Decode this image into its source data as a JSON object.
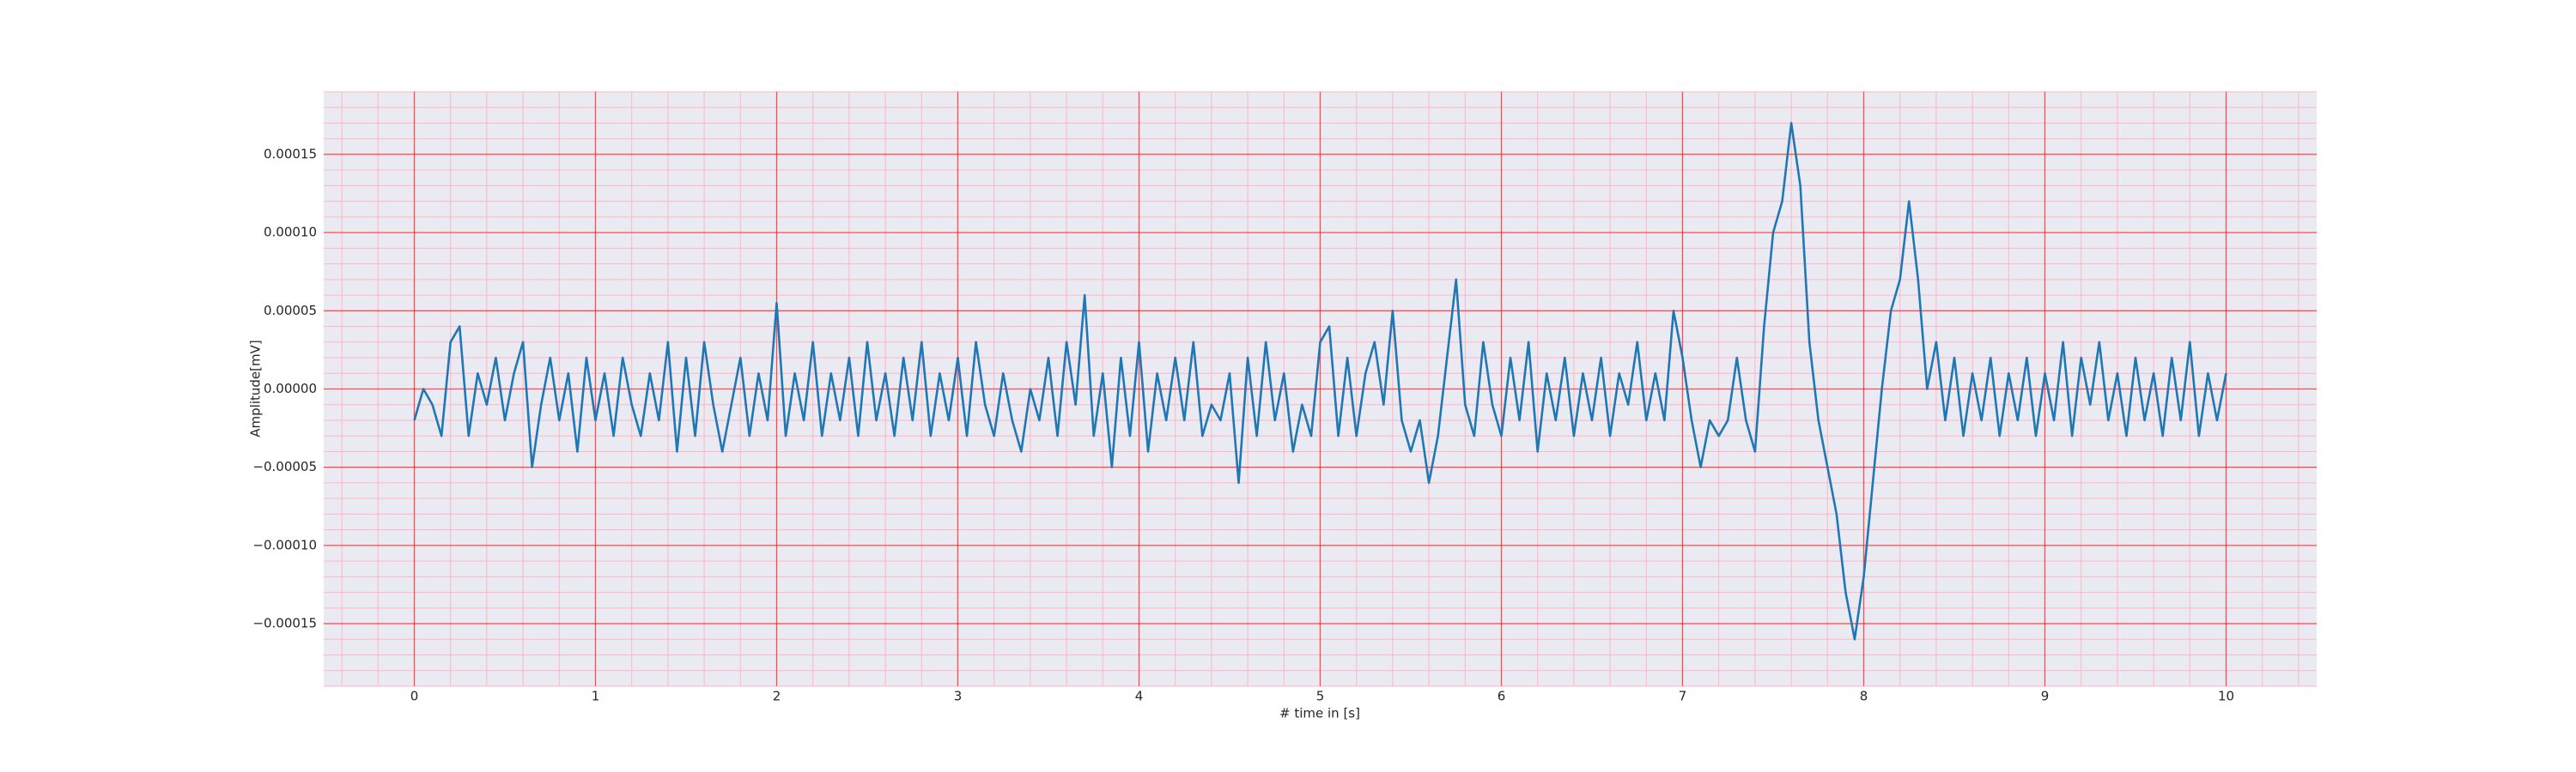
{
  "chart_data": {
    "type": "line",
    "xlabel": "# time in [s]",
    "ylabel": "Amplitude[mV]",
    "color": "#1f77b4",
    "grid": true,
    "minor_grid": true,
    "xlim": [
      -0.5,
      10.5
    ],
    "xticks": [
      0,
      1,
      2,
      3,
      4,
      5,
      6,
      7,
      8,
      9,
      10
    ],
    "ylim": [
      -0.00019,
      0.00019
    ],
    "yticks": [
      {
        "value": -0.00015,
        "label": "−0.00015"
      },
      {
        "value": -0.0001,
        "label": "−0.00010"
      },
      {
        "value": -5e-05,
        "label": "−0.00005"
      },
      {
        "value": 0,
        "label": "0.00000"
      },
      {
        "value": 5e-05,
        "label": "0.00005"
      },
      {
        "value": 0.0001,
        "label": "0.00010"
      },
      {
        "value": 0.00015,
        "label": "0.00015"
      }
    ],
    "x": [
      0,
      0.05,
      0.1,
      0.15,
      0.2,
      0.25,
      0.3,
      0.35,
      0.4,
      0.45,
      0.5,
      0.55,
      0.6,
      0.65,
      0.7,
      0.75,
      0.8,
      0.85,
      0.9,
      0.95,
      1,
      1.05,
      1.1,
      1.15,
      1.2,
      1.25,
      1.3,
      1.35,
      1.4,
      1.45,
      1.5,
      1.55,
      1.6,
      1.65,
      1.7,
      1.75,
      1.8,
      1.85,
      1.9,
      1.95,
      2,
      2.05,
      2.1,
      2.15,
      2.2,
      2.25,
      2.3,
      2.35,
      2.4,
      2.45,
      2.5,
      2.55,
      2.6,
      2.65,
      2.7,
      2.75,
      2.8,
      2.85,
      2.9,
      2.95,
      3,
      3.05,
      3.1,
      3.15,
      3.2,
      3.25,
      3.3,
      3.35,
      3.4,
      3.45,
      3.5,
      3.55,
      3.6,
      3.65,
      3.7,
      3.75,
      3.8,
      3.85,
      3.9,
      3.95,
      4,
      4.05,
      4.1,
      4.15,
      4.2,
      4.25,
      4.3,
      4.35,
      4.4,
      4.45,
      4.5,
      4.55,
      4.6,
      4.65,
      4.7,
      4.75,
      4.8,
      4.85,
      4.9,
      4.95,
      5,
      5.05,
      5.1,
      5.15,
      5.2,
      5.25,
      5.3,
      5.35,
      5.4,
      5.45,
      5.5,
      5.55,
      5.6,
      5.65,
      5.7,
      5.75,
      5.8,
      5.85,
      5.9,
      5.95,
      6,
      6.05,
      6.1,
      6.15,
      6.2,
      6.25,
      6.3,
      6.35,
      6.4,
      6.45,
      6.5,
      6.55,
      6.6,
      6.65,
      6.7,
      6.75,
      6.8,
      6.85,
      6.9,
      6.95,
      7,
      7.05,
      7.1,
      7.15,
      7.2,
      7.25,
      7.3,
      7.35,
      7.4,
      7.45,
      7.5,
      7.55,
      7.6,
      7.65,
      7.7,
      7.75,
      7.8,
      7.85,
      7.9,
      7.95,
      8,
      8.05,
      8.1,
      8.15,
      8.2,
      8.25,
      8.3,
      8.35,
      8.4,
      8.45,
      8.5,
      8.55,
      8.6,
      8.65,
      8.7,
      8.75,
      8.8,
      8.85,
      8.9,
      8.95,
      9,
      9.05,
      9.1,
      9.15,
      9.2,
      9.25,
      9.3,
      9.35,
      9.4,
      9.45,
      9.5,
      9.55,
      9.6,
      9.65,
      9.7,
      9.75,
      9.8,
      9.85,
      9.9,
      9.95,
      10
    ],
    "values": [
      -2e-05,
      0,
      -1e-05,
      -3e-05,
      3e-05,
      4e-05,
      -3e-05,
      1e-05,
      -1e-05,
      2e-05,
      -2e-05,
      1e-05,
      3e-05,
      -5e-05,
      -1e-05,
      2e-05,
      -2e-05,
      1e-05,
      -4e-05,
      2e-05,
      -2e-05,
      1e-05,
      -3e-05,
      2e-05,
      -1e-05,
      -3e-05,
      1e-05,
      -2e-05,
      3e-05,
      -4e-05,
      2e-05,
      -3e-05,
      3e-05,
      -1e-05,
      -4e-05,
      -1e-05,
      2e-05,
      -3e-05,
      1e-05,
      -2e-05,
      5.5e-05,
      -3e-05,
      1e-05,
      -2e-05,
      3e-05,
      -3e-05,
      1e-05,
      -2e-05,
      2e-05,
      -3e-05,
      3e-05,
      -2e-05,
      1e-05,
      -3e-05,
      2e-05,
      -2e-05,
      3e-05,
      -3e-05,
      1e-05,
      -2e-05,
      2e-05,
      -3e-05,
      3e-05,
      -1e-05,
      -3e-05,
      1e-05,
      -2e-05,
      -4e-05,
      0,
      -2e-05,
      2e-05,
      -3e-05,
      3e-05,
      -1e-05,
      6e-05,
      -3e-05,
      1e-05,
      -5e-05,
      2e-05,
      -3e-05,
      3e-05,
      -4e-05,
      1e-05,
      -2e-05,
      2e-05,
      -2e-05,
      3e-05,
      -3e-05,
      -1e-05,
      -2e-05,
      1e-05,
      -6e-05,
      2e-05,
      -3e-05,
      3e-05,
      -2e-05,
      1e-05,
      -4e-05,
      -1e-05,
      -3e-05,
      3e-05,
      4e-05,
      -3e-05,
      2e-05,
      -3e-05,
      1e-05,
      3e-05,
      -1e-05,
      5e-05,
      -2e-05,
      -4e-05,
      -2e-05,
      -6e-05,
      -3e-05,
      2e-05,
      7e-05,
      -1e-05,
      -3e-05,
      3e-05,
      -1e-05,
      -3e-05,
      2e-05,
      -2e-05,
      3e-05,
      -4e-05,
      1e-05,
      -2e-05,
      2e-05,
      -3e-05,
      1e-05,
      -2e-05,
      2e-05,
      -3e-05,
      1e-05,
      -1e-05,
      3e-05,
      -2e-05,
      1e-05,
      -2e-05,
      5e-05,
      2e-05,
      -2e-05,
      -5e-05,
      -2e-05,
      -3e-05,
      -2e-05,
      2e-05,
      -2e-05,
      -4e-05,
      4e-05,
      0.0001,
      0.00012,
      0.00017,
      0.00013,
      3e-05,
      -2e-05,
      -5e-05,
      -8e-05,
      -0.00013,
      -0.00016,
      -0.00012,
      -6e-05,
      0,
      5e-05,
      7e-05,
      0.00012,
      7e-05,
      0,
      3e-05,
      -2e-05,
      2e-05,
      -3e-05,
      1e-05,
      -2e-05,
      2e-05,
      -3e-05,
      1e-05,
      -2e-05,
      2e-05,
      -3e-05,
      1e-05,
      -2e-05,
      3e-05,
      -3e-05,
      2e-05,
      -1e-05,
      3e-05,
      -2e-05,
      1e-05,
      -3e-05,
      2e-05,
      -2e-05,
      1e-05,
      -3e-05,
      2e-05,
      -2e-05,
      3e-05,
      -3e-05,
      1e-05,
      -2e-05,
      1e-05
    ]
  }
}
